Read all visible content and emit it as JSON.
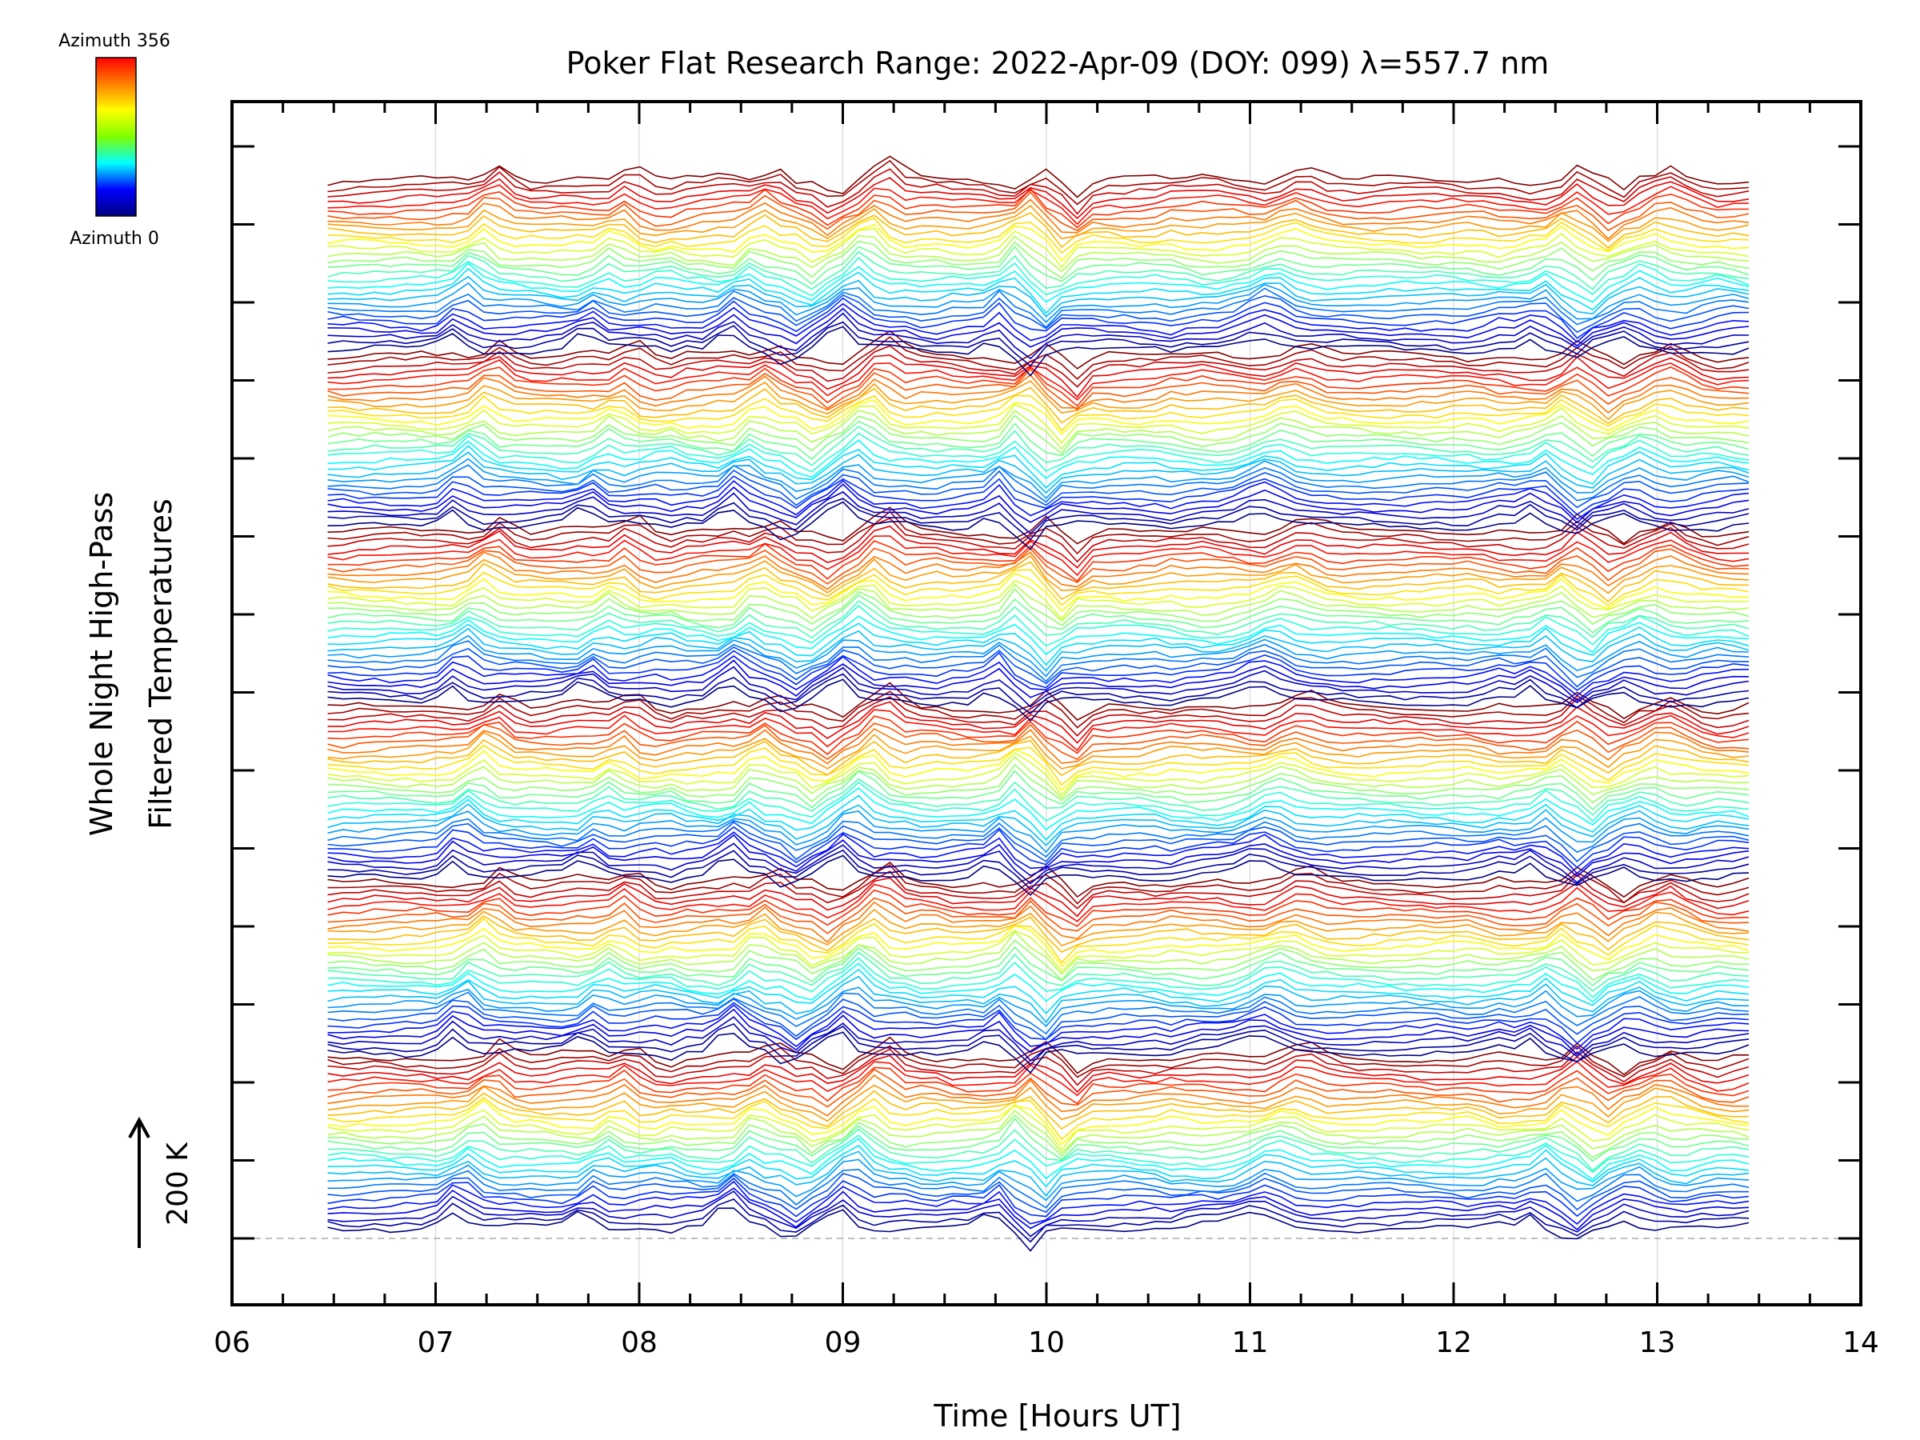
{
  "chart_data": {
    "type": "line",
    "title": "Poker Flat Research Range: 2022-Apr-09 (DOY: 099) λ=557.7 nm",
    "xlabel": "Time [Hours UT]",
    "ylabel": [
      "Whole Night High-Pass",
      "Filtered Temperatures"
    ],
    "xlim": [
      6,
      14
    ],
    "x_ticks": [
      "06",
      "07",
      "08",
      "09",
      "10",
      "11",
      "12",
      "13",
      "14"
    ],
    "grid": true,
    "scale_arrow": {
      "label": "200 K"
    },
    "colorbar": {
      "top_label": "Azimuth 356",
      "bottom_label": "Azimuth 0",
      "colormap": [
        "#000080",
        "#0000ff",
        "#00ffff",
        "#7fff00",
        "#ffff00",
        "#ff8000",
        "#ff0000"
      ]
    },
    "stacking": "waterfall",
    "series_start_hour": 6.47,
    "series_end_hour": 13.45,
    "n_series": 180,
    "n_points": 92
  }
}
